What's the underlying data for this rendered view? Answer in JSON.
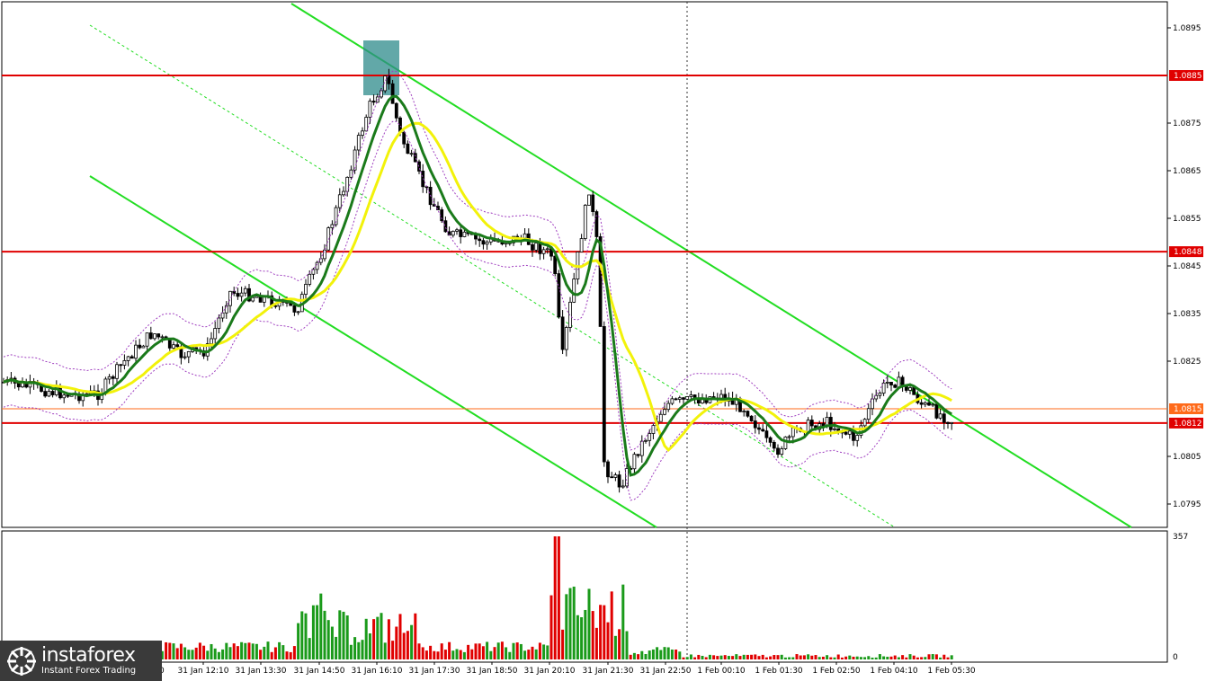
{
  "chart_data": {
    "type": "candlestick",
    "instrument_hint": "EUR/USD intraday",
    "price_axis": {
      "ylim": [
        1.079,
        1.09
      ],
      "tick_labels": [
        "1.0895",
        "1.0875",
        "1.0865",
        "1.0855",
        "1.0845",
        "1.0835",
        "1.0825",
        "1.0805",
        "1.0795"
      ]
    },
    "time_axis": {
      "labels": [
        "31 Jan 12:10",
        "31 Jan 13:30",
        "31 Jan 14:50",
        "31 Jan 16:10",
        "31 Jan 17:30",
        "31 Jan 18:50",
        "31 Jan 20:10",
        "31 Jan 21:30",
        "31 Jan 22:50",
        "1 Feb 00:10",
        "1 Feb 01:30",
        "1 Feb 02:50",
        "1 Feb 04:10",
        "1 Feb 05:30"
      ],
      "partial_first_label": "0"
    },
    "horizontal_levels": [
      {
        "price": 1.0885,
        "label": "1.0885",
        "color": "#e00000"
      },
      {
        "price": 1.0848,
        "label": "1.0848",
        "color": "#e00000"
      },
      {
        "price": 1.0812,
        "label": "1.0812",
        "color": "#e00000"
      },
      {
        "price": 1.0815,
        "label": "1.0815",
        "color": "#ff6a1a",
        "current_price": true
      }
    ],
    "moving_averages": [
      {
        "color": "#1a7a1a",
        "role": "fast MA"
      },
      {
        "color": "#f2f20a",
        "role": "slow MA"
      }
    ],
    "volume_axis": {
      "max_label": "357",
      "min_label": "0"
    },
    "highlight_box_color": "#2e8b8b",
    "channel_color": "#22dd22",
    "grid": false
  },
  "branding": {
    "name": "instaforex",
    "tagline": "Instant Forex Trading"
  }
}
